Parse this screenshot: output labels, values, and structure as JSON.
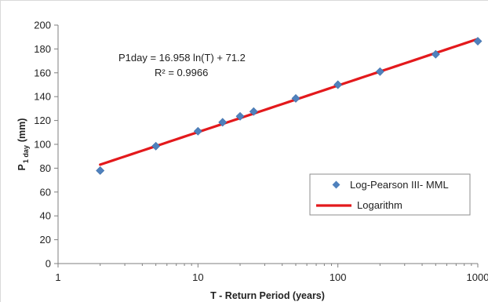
{
  "chart_data": {
    "type": "scatter",
    "title": "",
    "xlabel": "T - Return Period (years)",
    "ylabel": {
      "main": "P",
      "sub": "1 day",
      "unit": "(mm)"
    },
    "x_scale": "log",
    "xlim": [
      1,
      1000
    ],
    "ylim": [
      0,
      200
    ],
    "x_ticks": [
      "1",
      "10",
      "100",
      "1000"
    ],
    "y_ticks": [
      "0",
      "20",
      "40",
      "60",
      "80",
      "100",
      "120",
      "140",
      "160",
      "180",
      "200"
    ],
    "grid": false,
    "legend_position": "bottom-right",
    "series": [
      {
        "name": "Log-Pearson III- MML",
        "kind": "markers",
        "color": "#4F81BD",
        "x": [
          2,
          5,
          10,
          15,
          20,
          25,
          50,
          100,
          200,
          500,
          1000
        ],
        "y": [
          78,
          98.5,
          111,
          118.5,
          123.5,
          127.5,
          138.5,
          150,
          161,
          175.5,
          186.5
        ]
      },
      {
        "name": "Logarithm",
        "kind": "line",
        "color": "#E3191C",
        "equation": {
          "a": 16.958,
          "b": 71.2
        },
        "x_range": [
          2,
          1000
        ]
      }
    ],
    "annotations": {
      "equation": "P1day = 16.958 ln(T) + 71.2",
      "r2": "R² = 0.9966"
    }
  }
}
